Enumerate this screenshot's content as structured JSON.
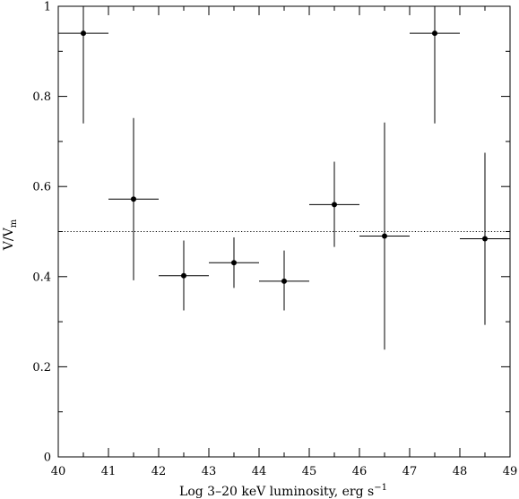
{
  "chart_data": {
    "type": "scatter",
    "xlabel": "Log 3–20 keV luminosity, erg s",
    "xlabel_superscript": "−1",
    "ylabel": "V/V",
    "ylabel_subscript": "m",
    "xlim": [
      40,
      49
    ],
    "ylim": [
      0,
      1
    ],
    "x_ticks": [
      "40",
      "41",
      "42",
      "43",
      "44",
      "45",
      "46",
      "47",
      "48",
      "49"
    ],
    "y_ticks": [
      "0",
      "0.2",
      "0.4",
      "0.6",
      "0.8",
      "1"
    ],
    "reference_line": {
      "y": 0.5,
      "style": "dotted"
    },
    "grid": false,
    "points": [
      {
        "x": 40.5,
        "x_low": 40.0,
        "x_high": 41.0,
        "y": 0.94,
        "y_low": 0.74,
        "y_high": 1.0
      },
      {
        "x": 41.5,
        "x_low": 41.0,
        "x_high": 42.0,
        "y": 0.572,
        "y_low": 0.392,
        "y_high": 0.752
      },
      {
        "x": 42.5,
        "x_low": 42.0,
        "x_high": 43.0,
        "y": 0.402,
        "y_low": 0.325,
        "y_high": 0.48
      },
      {
        "x": 43.5,
        "x_low": 43.0,
        "x_high": 44.0,
        "y": 0.431,
        "y_low": 0.375,
        "y_high": 0.487
      },
      {
        "x": 44.5,
        "x_low": 44.0,
        "x_high": 45.0,
        "y": 0.39,
        "y_low": 0.325,
        "y_high": 0.458
      },
      {
        "x": 45.5,
        "x_low": 45.0,
        "x_high": 46.0,
        "y": 0.56,
        "y_low": 0.466,
        "y_high": 0.655
      },
      {
        "x": 46.5,
        "x_low": 46.0,
        "x_high": 47.0,
        "y": 0.49,
        "y_low": 0.238,
        "y_high": 0.742
      },
      {
        "x": 47.5,
        "x_low": 47.0,
        "x_high": 48.0,
        "y": 0.94,
        "y_low": 0.74,
        "y_high": 1.0
      },
      {
        "x": 48.5,
        "x_low": 48.0,
        "x_high": 49.0,
        "y": 0.484,
        "y_low": 0.293,
        "y_high": 0.675
      }
    ]
  }
}
